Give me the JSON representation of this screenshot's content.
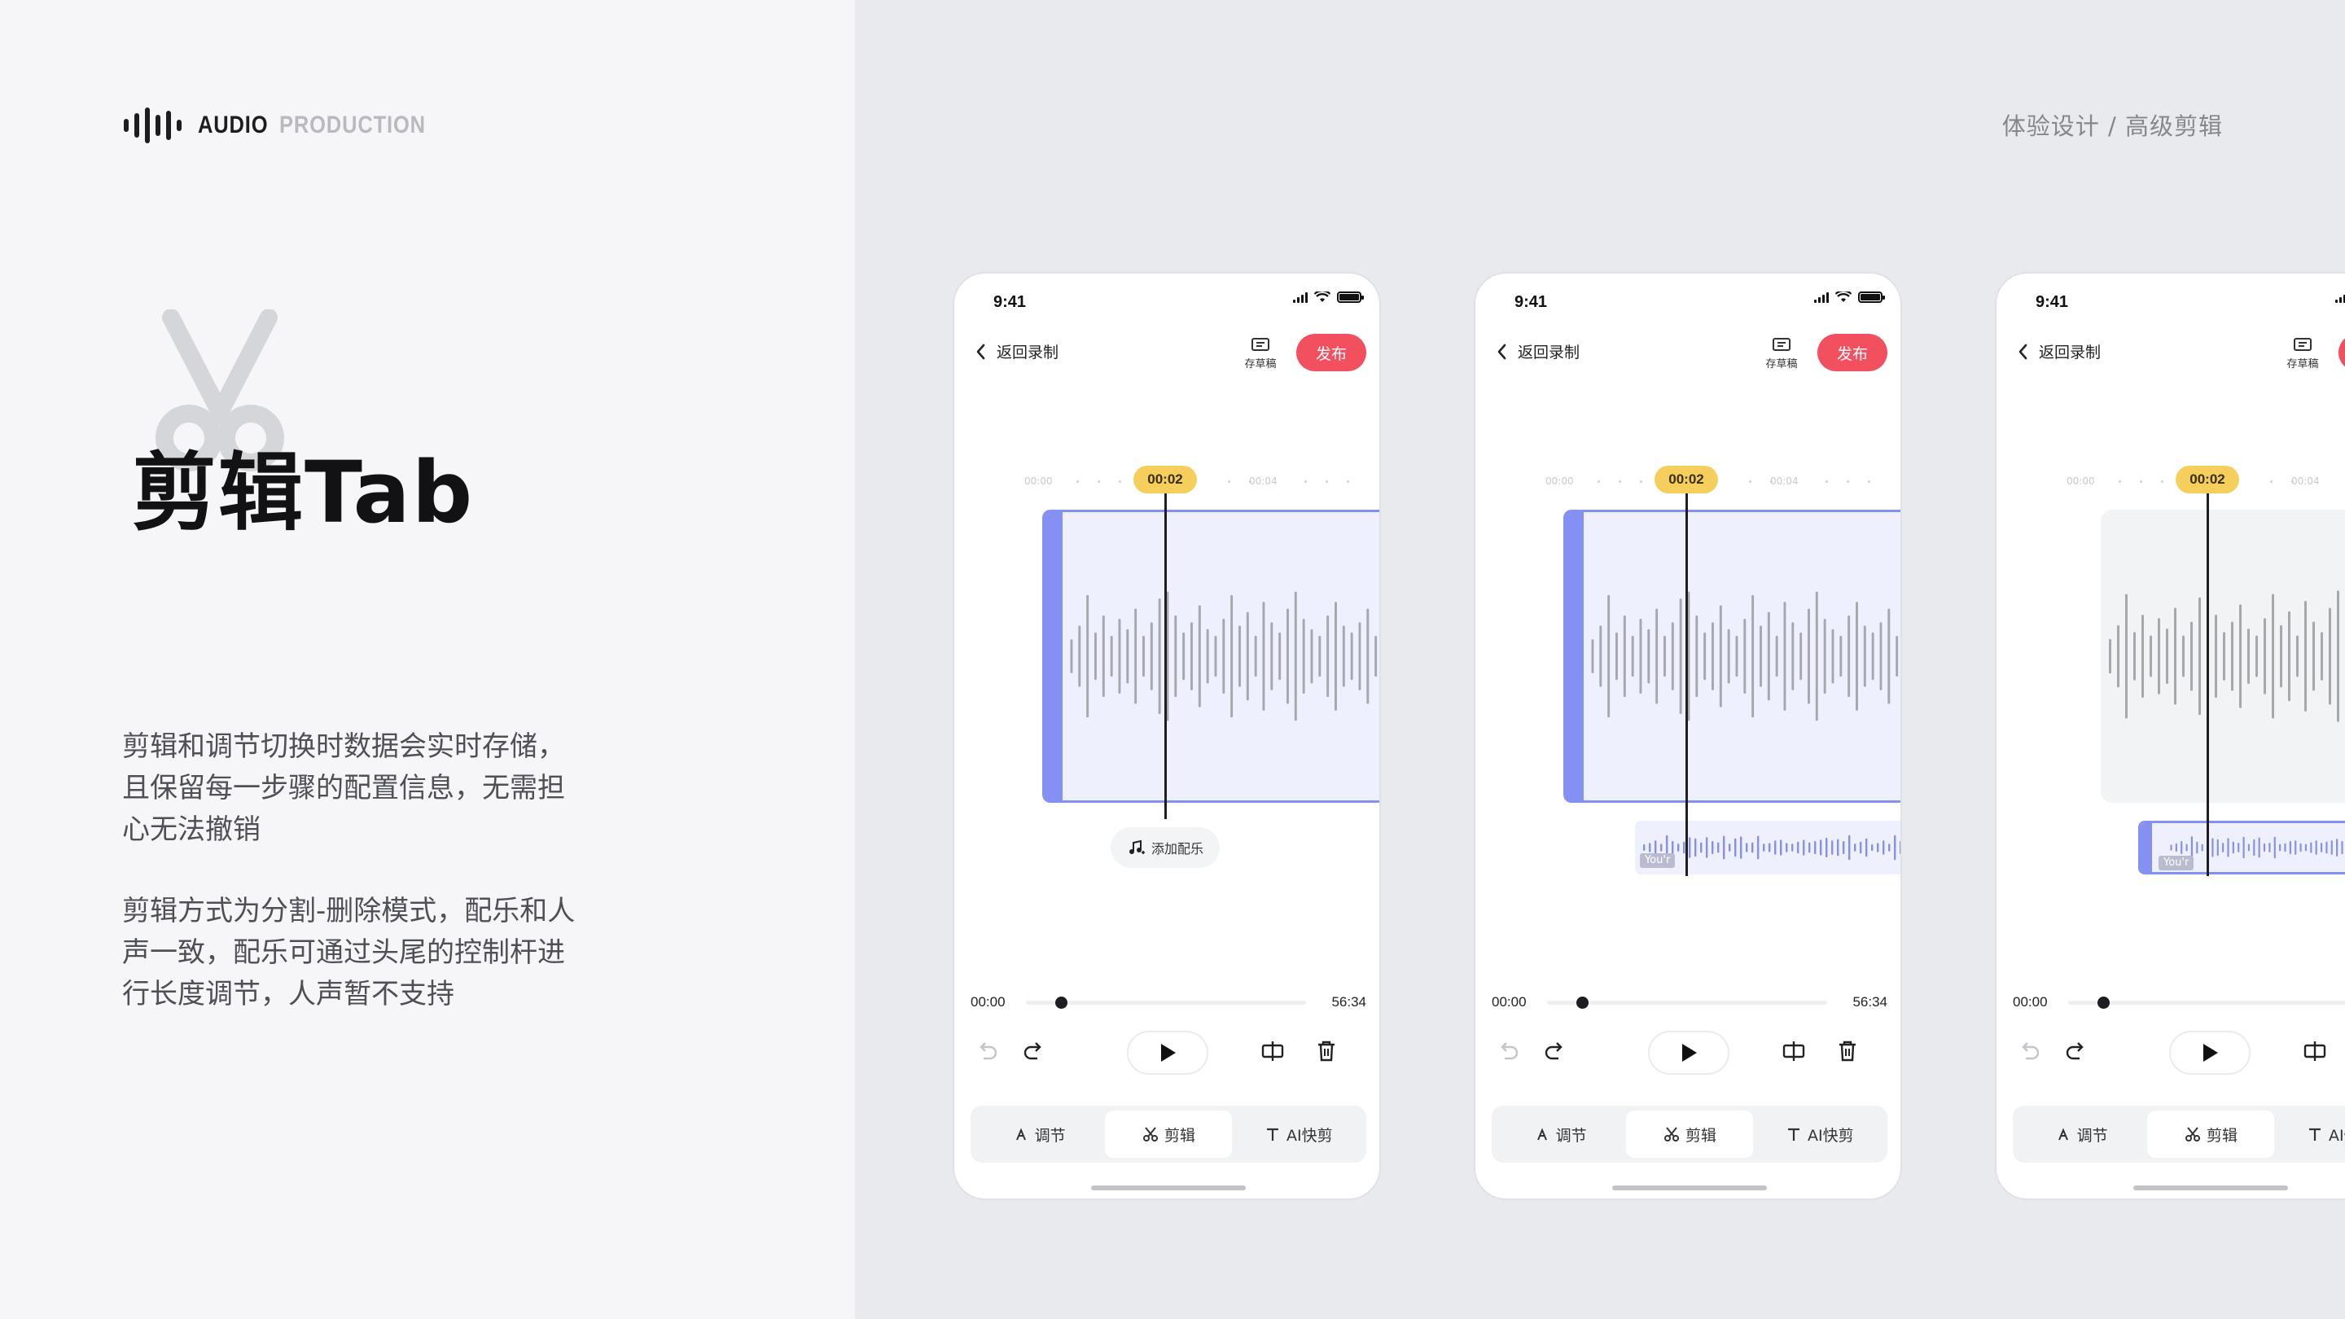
{
  "brand": {
    "primary": "AUDIO",
    "secondary": "PRODUCTION"
  },
  "breadcrumb": "体验设计 / 高级剪辑",
  "title": "剪辑Tab",
  "descriptions": [
    "剪辑和调节切换时数据会实时存储，且保留每一步骤的配置信息，无需担心无法撤销",
    "剪辑方式为分割-删除模式，配乐和人声一致，配乐可通过头尾的控制杆进行长度调节，人声暂不支持"
  ],
  "phone": {
    "time": "9:41",
    "back_label": "返回录制",
    "draft_label": "存草稿",
    "publish_label": "发布",
    "playhead": "00:02",
    "ruler": [
      "00:00",
      "00:04"
    ],
    "add_music_label": "添加配乐",
    "track_tag": "You'r",
    "progress_start": "00:00",
    "progress_end": "56:34",
    "tabs": [
      "调节",
      "剪辑",
      "AI快剪"
    ],
    "active_tab": 1
  },
  "colors": {
    "accent": "#8490f2",
    "publish": "#f3505f",
    "playhead": "#f5ce5c"
  }
}
